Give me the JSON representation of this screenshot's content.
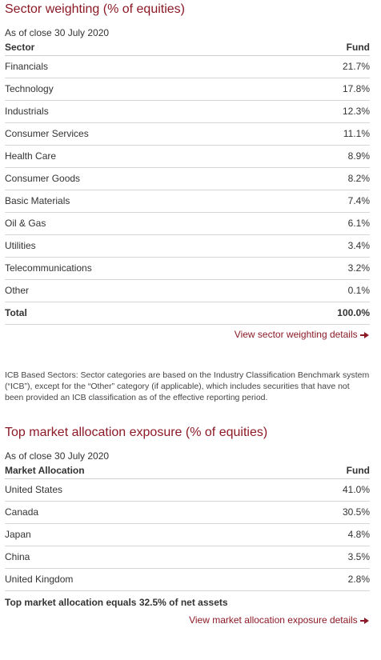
{
  "sector": {
    "title": "Sector weighting (% of equities)",
    "as_of": "As of close 30 July 2020",
    "headers": {
      "name": "Sector",
      "value": "Fund"
    },
    "rows": [
      {
        "name": "Financials",
        "value": "21.7%"
      },
      {
        "name": "Technology",
        "value": "17.8%"
      },
      {
        "name": "Industrials",
        "value": "12.3%"
      },
      {
        "name": "Consumer Services",
        "value": "11.1%"
      },
      {
        "name": "Health Care",
        "value": "8.9%"
      },
      {
        "name": "Consumer Goods",
        "value": "8.2%"
      },
      {
        "name": "Basic Materials",
        "value": "7.4%"
      },
      {
        "name": "Oil & Gas",
        "value": "6.1%"
      },
      {
        "name": "Utilities",
        "value": "3.4%"
      },
      {
        "name": "Telecommunications",
        "value": "3.2%"
      },
      {
        "name": "Other",
        "value": "0.1%"
      }
    ],
    "total": {
      "name": "Total",
      "value": "100.0%"
    },
    "link": "View sector weighting details",
    "footnote": "ICB Based Sectors: Sector categories are based on the Industry Classification Benchmark system (“ICB”), except for the “Other” category (if applicable), which includes securities that have not been provided an ICB classification as of the effective reporting period."
  },
  "market": {
    "title": "Top market allocation exposure (% of equities)",
    "as_of": "As of close 30 July 2020",
    "headers": {
      "name": "Market Allocation",
      "value": "Fund"
    },
    "rows": [
      {
        "name": "United States",
        "value": "41.0%"
      },
      {
        "name": "Canada",
        "value": "30.5%"
      },
      {
        "name": "Japan",
        "value": "4.8%"
      },
      {
        "name": "China",
        "value": "3.5%"
      },
      {
        "name": "United Kingdom",
        "value": "2.8%"
      }
    ],
    "summary": "Top market allocation equals 32.5% of net assets",
    "link": "View market allocation exposure details"
  },
  "colors": {
    "accent": "#8b1a26",
    "text": "#333333",
    "rule": "#d6d6d6"
  },
  "icons": {
    "link_arrow": "arrow-right-icon"
  }
}
